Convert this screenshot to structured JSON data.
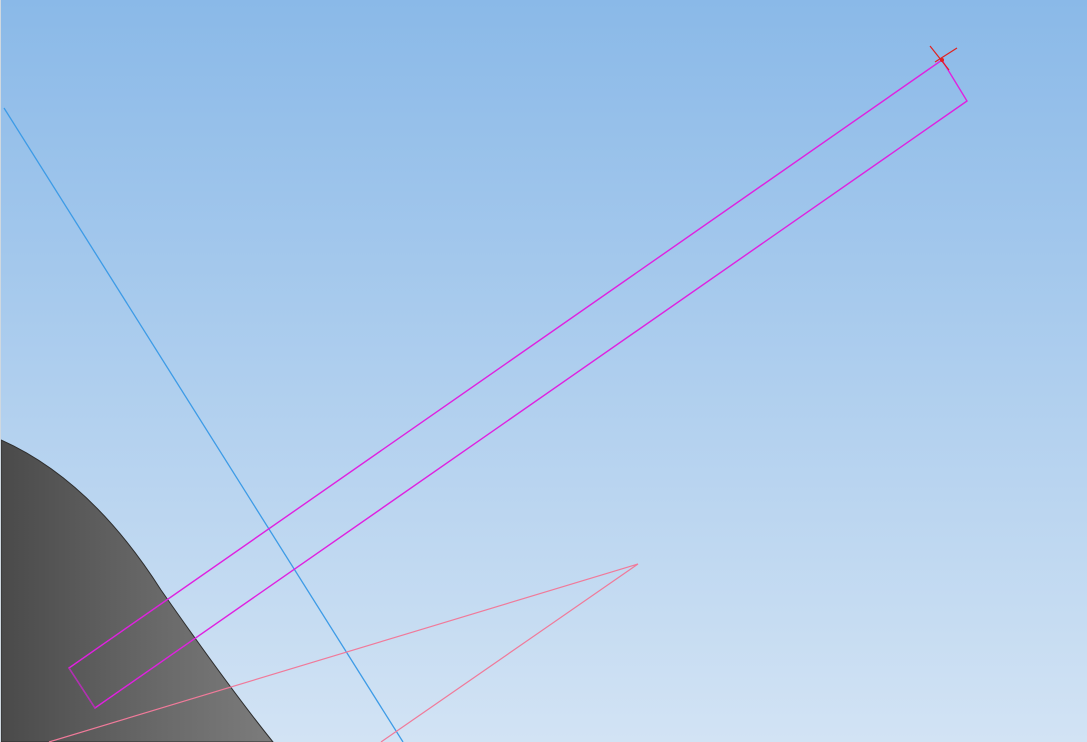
{
  "viewport": {
    "background_top": "#8ab9e8",
    "background_bottom": "#d2e3f4"
  },
  "colors": {
    "solid_body": "#5a5a5a",
    "sketch_profile": "#e020e0",
    "construction_axis": "#3d9be6",
    "reference_triangle": "#f07a9a",
    "cursor_marker": "#e02020"
  },
  "icons": {
    "cursor": "crosshair-icon"
  }
}
